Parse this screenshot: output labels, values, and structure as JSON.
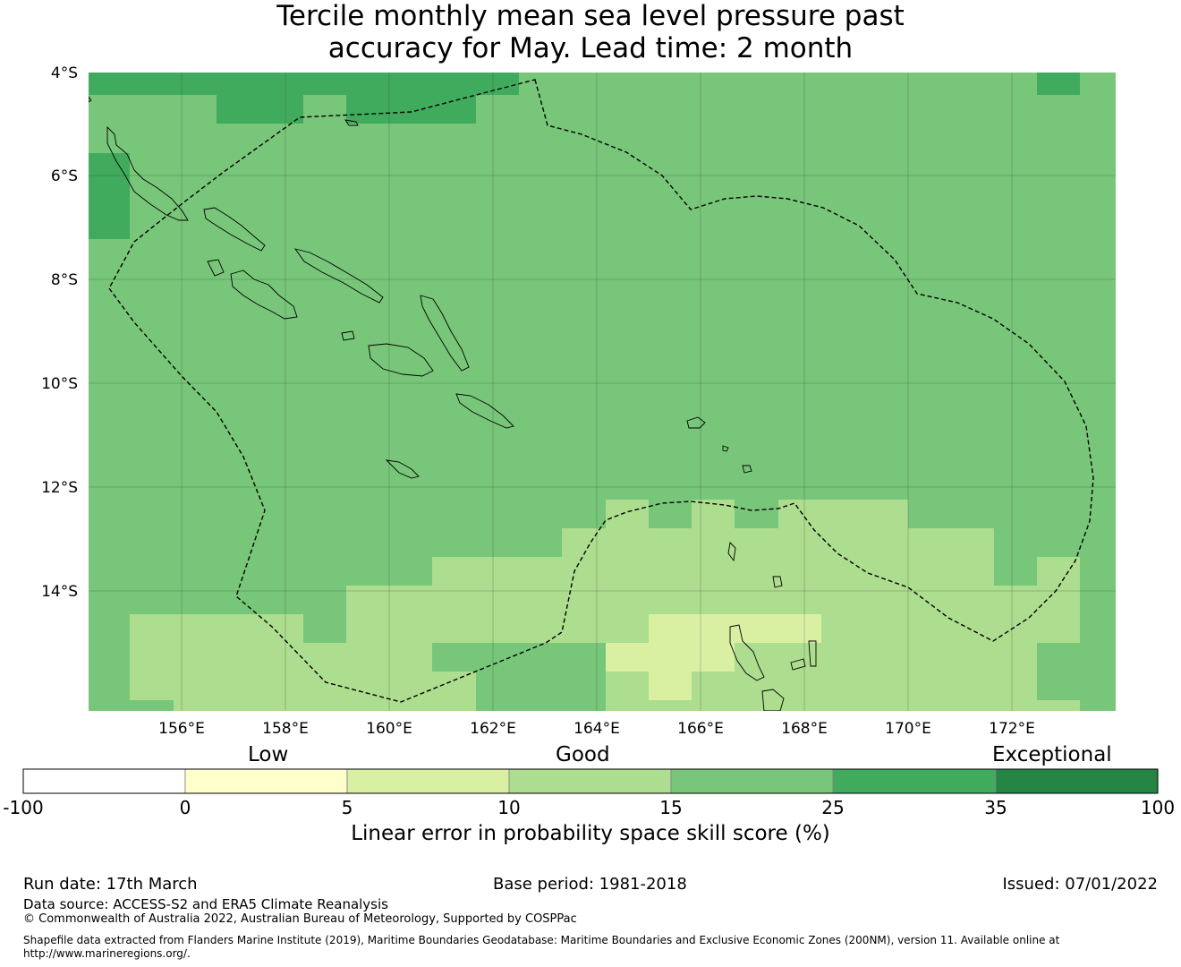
{
  "title": {
    "line1": "Tercile monthly mean sea level pressure past",
    "line2": "accuracy for May. Lead time: 2 month"
  },
  "map": {
    "lat_labels": [
      "4°S",
      "6°S",
      "8°S",
      "10°S",
      "12°S",
      "14°S"
    ],
    "lon_labels": [
      "156°E",
      "158°E",
      "160°E",
      "162°E",
      "164°E",
      "166°E",
      "168°E",
      "170°E",
      "172°E"
    ],
    "extent": {
      "lon": [
        154.2,
        174.0
      ],
      "lat": [
        -4.0,
        -16.3
      ]
    },
    "gridlines": true,
    "colors": {
      "good_high": "#78c679",
      "very_good": "#41ab5d",
      "good_low": "#addd8e",
      "low_high": "#d9f0a3",
      "coast": "#000000",
      "eez_boundary": "#000000"
    }
  },
  "colorbar": {
    "category_labels": [
      "Low",
      "Good",
      "Exceptional"
    ],
    "ticks": [
      "-100",
      "0",
      "5",
      "10",
      "15",
      "25",
      "35",
      "100"
    ],
    "colors": [
      "#ffffff",
      "#ffffcc",
      "#d9f0a3",
      "#addd8e",
      "#78c679",
      "#41ab5d",
      "#238443"
    ],
    "title": "Linear error in probability space skill score (%)"
  },
  "footer": {
    "run_date": "Run date: 17th March",
    "base_period": "Base period: 1981-2018",
    "issued": "Issued: 07/01/2022",
    "data_source": "Data source: ACCESS-S2 and ERA5 Climate Reanalysis",
    "copyright": "© Commonwealth of Australia 2022, Australian Bureau of Meteorology, Supported by COSPPac",
    "shapefile_line1": "Shapefile data extracted from Flanders Marine Institute (2019), Maritime Boundaries Geodatabase: Maritime Boundaries and Exclusive Economic Zones (200NM), version 11. Available online at",
    "shapefile_line2": "http://www.marineregions.org/."
  }
}
